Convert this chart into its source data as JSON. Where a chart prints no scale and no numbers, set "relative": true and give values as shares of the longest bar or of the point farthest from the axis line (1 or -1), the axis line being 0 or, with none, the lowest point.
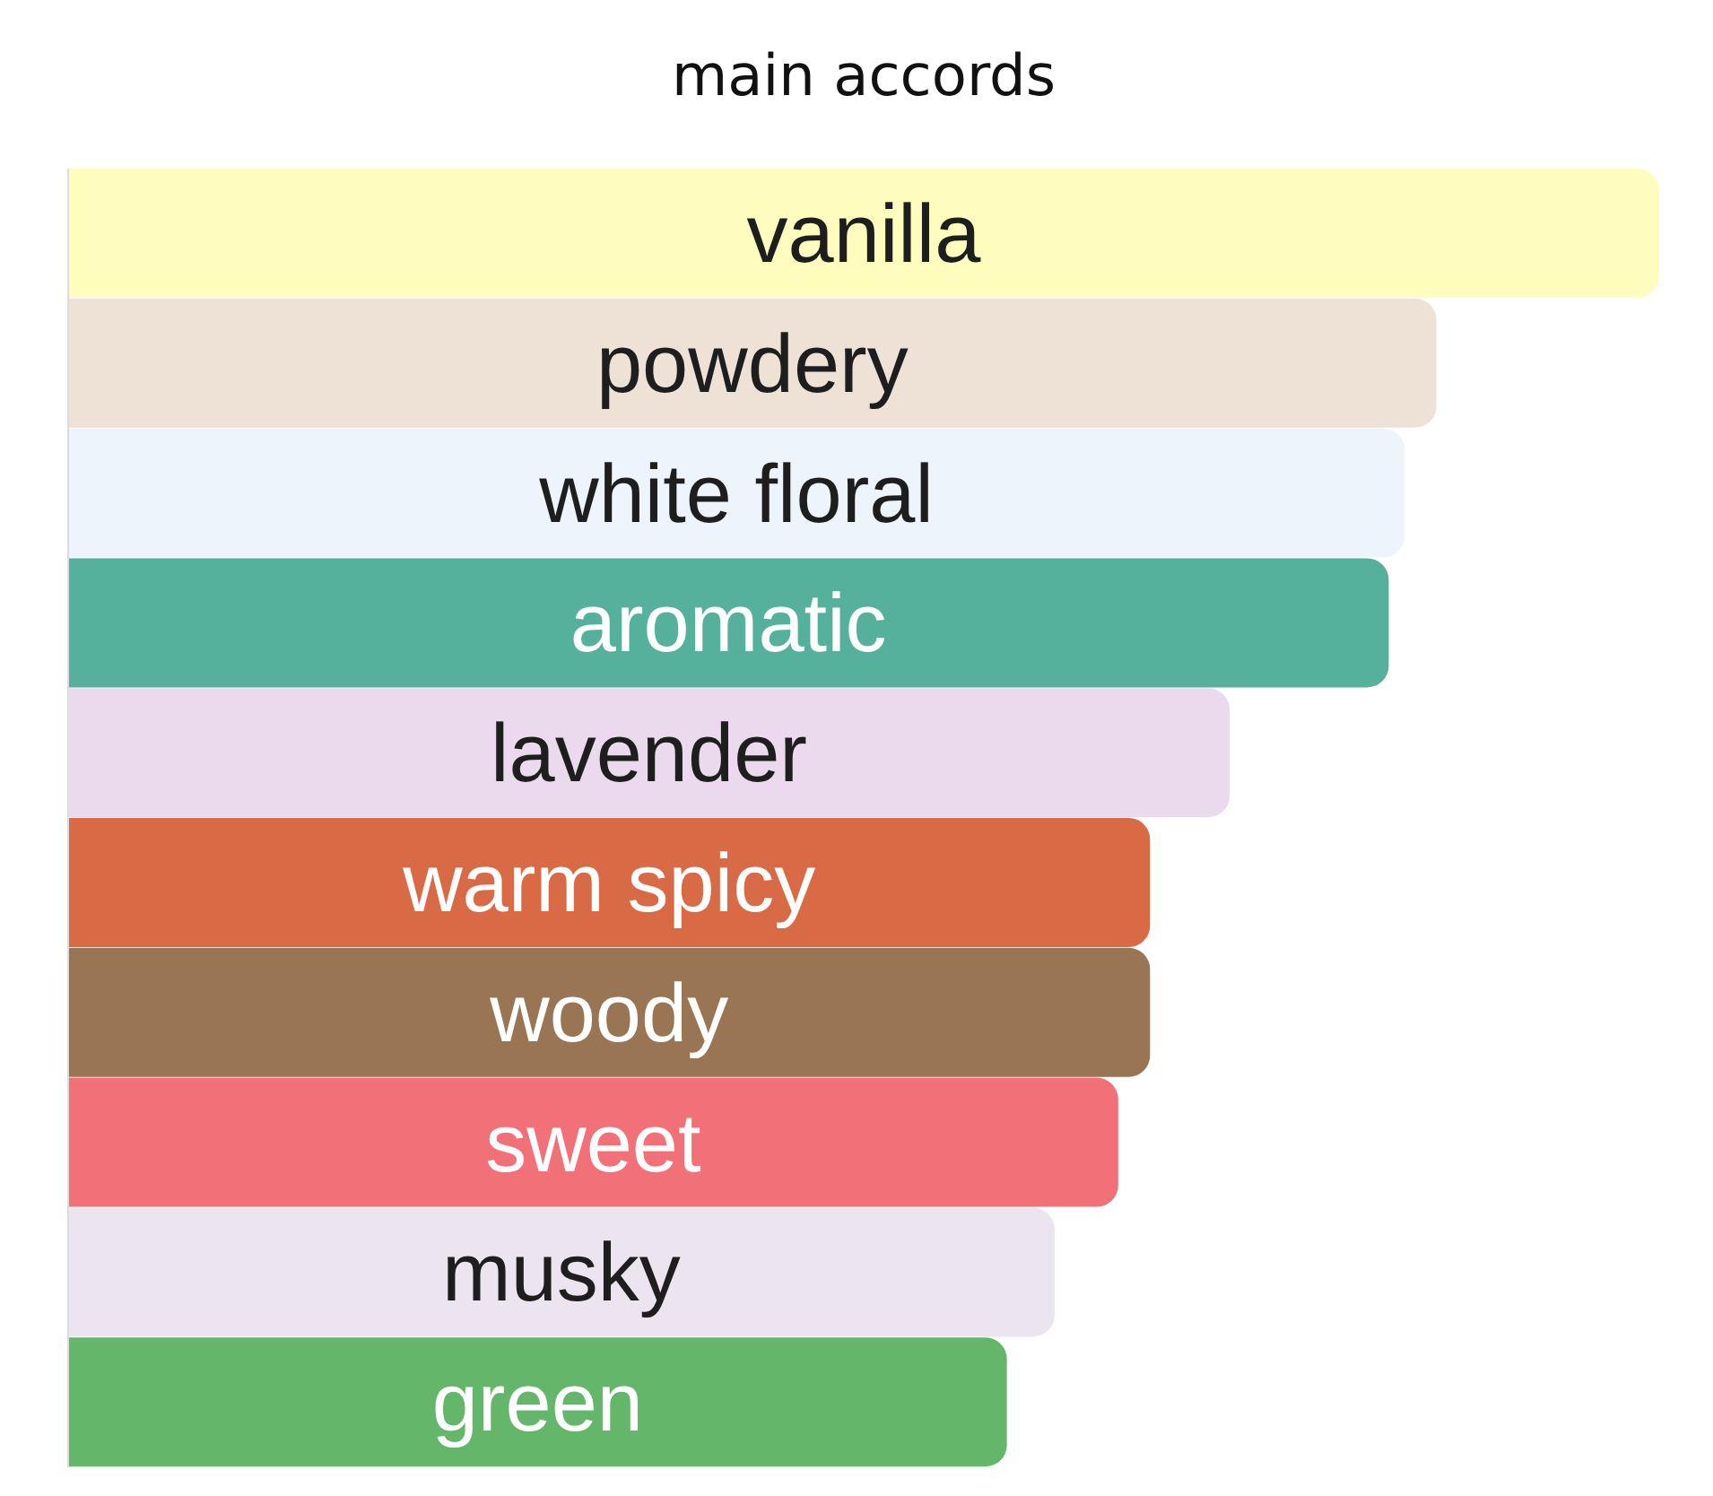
{
  "chart_data": {
    "type": "bar",
    "title": "main accords",
    "orientation": "horizontal",
    "relative": true,
    "categories": [
      "vanilla",
      "powdery",
      "white floral",
      "aromatic",
      "lavender",
      "warm spicy",
      "woody",
      "sweet",
      "musky",
      "green"
    ],
    "values": [
      1,
      0.86,
      0.84,
      0.83,
      0.73,
      0.68,
      0.68,
      0.66,
      0.62,
      0.59
    ],
    "colors": [
      "#fffdbd",
      "#eee2d6",
      "#eef4fb",
      "#55b09c",
      "#ebdaee",
      "#d96a46",
      "#9a7554",
      "#f27077",
      "#ece4ef",
      "#64b66b"
    ]
  }
}
